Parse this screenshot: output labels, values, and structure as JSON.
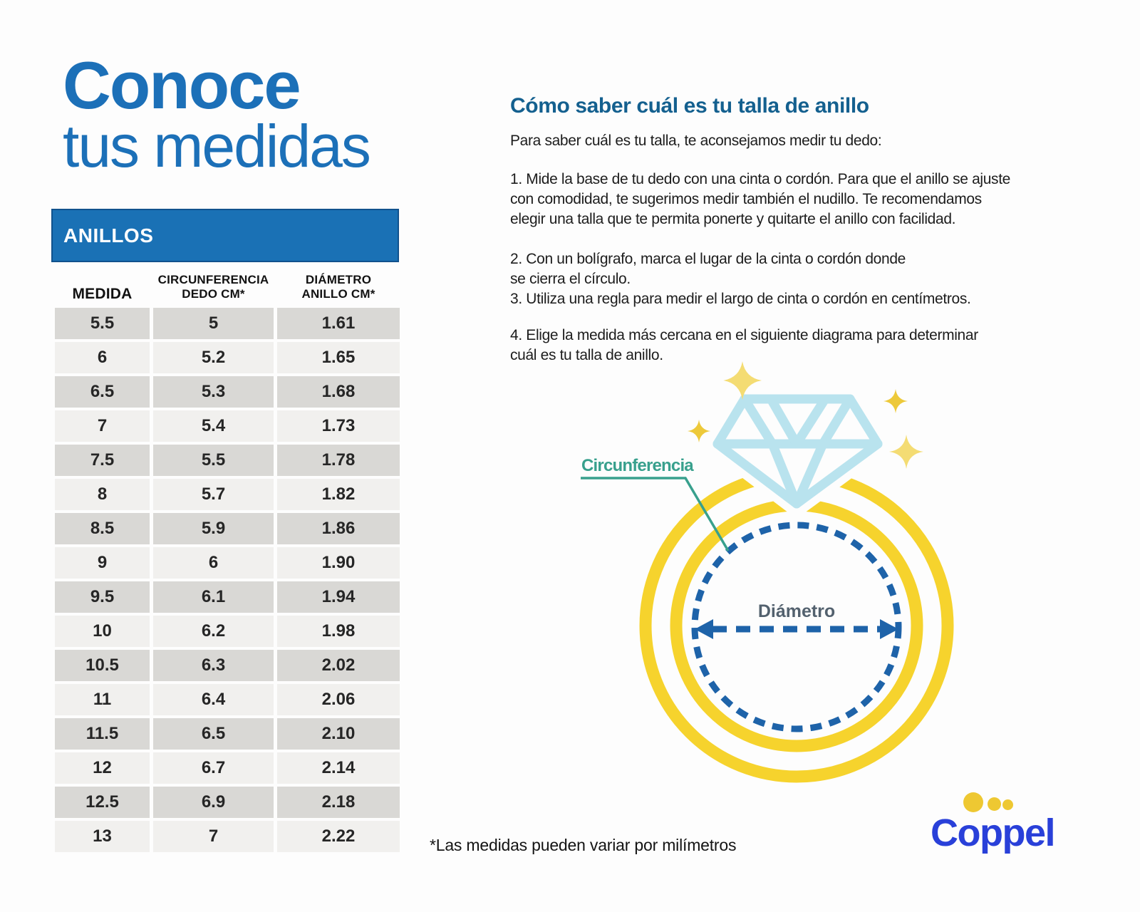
{
  "left": {
    "title_line1": "Conoce",
    "title_line2": "tus medidas",
    "table": {
      "banner": "ANILLOS",
      "columns": [
        "MEDIDA",
        "CIRCUNFERENCIA\nDEDO CM*",
        "DIÁMETRO\nANILLO CM*"
      ],
      "rows": [
        [
          "5.5",
          "5",
          "1.61"
        ],
        [
          "6",
          "5.2",
          "1.65"
        ],
        [
          "6.5",
          "5.3",
          "1.68"
        ],
        [
          "7",
          "5.4",
          "1.73"
        ],
        [
          "7.5",
          "5.5",
          "1.78"
        ],
        [
          "8",
          "5.7",
          "1.82"
        ],
        [
          "8.5",
          "5.9",
          "1.86"
        ],
        [
          "9",
          "6",
          "1.90"
        ],
        [
          "9.5",
          "6.1",
          "1.94"
        ],
        [
          "10",
          "6.2",
          "1.98"
        ],
        [
          "10.5",
          "6.3",
          "2.02"
        ],
        [
          "11",
          "6.4",
          "2.06"
        ],
        [
          "11.5",
          "6.5",
          "2.10"
        ],
        [
          "12",
          "6.7",
          "2.14"
        ],
        [
          "12.5",
          "6.9",
          "2.18"
        ],
        [
          "13",
          "7",
          "2.22"
        ]
      ]
    }
  },
  "right": {
    "heading": "Cómo saber cuál es tu talla de anillo",
    "intro": "Para saber cuál es tu talla, te aconsejamos medir tu dedo:",
    "step1": "1. Mide la base de tu dedo con una cinta o cordón. Para que el anillo se ajuste\ncon comodidad, te sugerimos medir también el nudillo. Te recomendamos\nelegir una talla que te permita ponerte y quitarte el anillo con facilidad.",
    "step23": "2. Con un bolígrafo, marca el lugar de la cinta o cordón donde\nse cierra el círculo.\n3. Utiliza una regla para medir el largo de cinta o cordón en centímetros.",
    "step4": "4. Elige la medida más cercana en el siguiente diagrama para determinar\ncuál es tu talla de anillo."
  },
  "diagram": {
    "circumference_label": "Circunferencia",
    "diameter_label": "Diámetro"
  },
  "footnote": "*Las medidas pueden variar por milímetros",
  "brand": {
    "name": "Coppel"
  },
  "colors": {
    "title_blue": "#1c70b8",
    "banner_blue": "#1a71b5",
    "heading_blue": "#14608f",
    "row_dark": "#d9d8d5",
    "row_light": "#f1f0ee",
    "ring_yellow": "#f6d32d",
    "diamond_blue": "#b9e3ee",
    "circumference_teal": "#38a08d",
    "dashed_blue": "#1e63a9",
    "diameter_gray": "#53616e",
    "sparkle_gold": "#edc93a",
    "sparkle_pale": "#f4dc73",
    "coppel_blue": "#2940d9",
    "coppel_dot_yellow": "#eec832"
  }
}
